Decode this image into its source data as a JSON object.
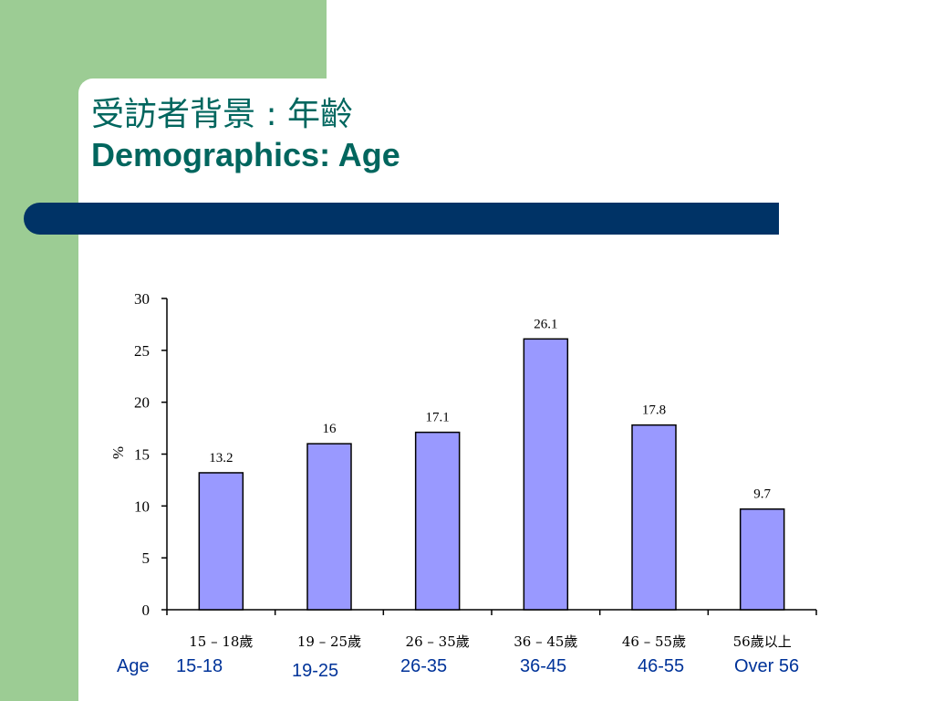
{
  "slide": {
    "title_zh": "受訪者背景 : 年齡",
    "title_en": "Demographics: Age"
  },
  "colors": {
    "side_band": "#9ccc94",
    "stripe": "#003366",
    "title": "#00665e",
    "bar_fill": "#9999ff",
    "bar_stroke": "#000000",
    "english_labels": "#003399"
  },
  "chart_data": {
    "type": "bar",
    "categories": [
      "15 – 18歲",
      "19 – 25歲",
      "26 – 35歲",
      "36 – 45歲",
      "46 – 55歲",
      "56歲以上"
    ],
    "values": [
      13.2,
      16,
      17.1,
      26.1,
      17.8,
      9.7
    ],
    "value_labels": [
      "13.2",
      "16",
      "17.1",
      "26.1",
      "17.8",
      "9.7"
    ],
    "ylabel": "%",
    "ylim": [
      0,
      30
    ],
    "yticks": [
      0,
      5,
      10,
      15,
      20,
      25,
      30
    ],
    "grid": false,
    "legend": "none"
  },
  "english_labels": {
    "prefix": "Age",
    "items": [
      "15-18",
      "19-25",
      "26-35",
      "36-45",
      "46-55",
      "Over 56"
    ]
  }
}
